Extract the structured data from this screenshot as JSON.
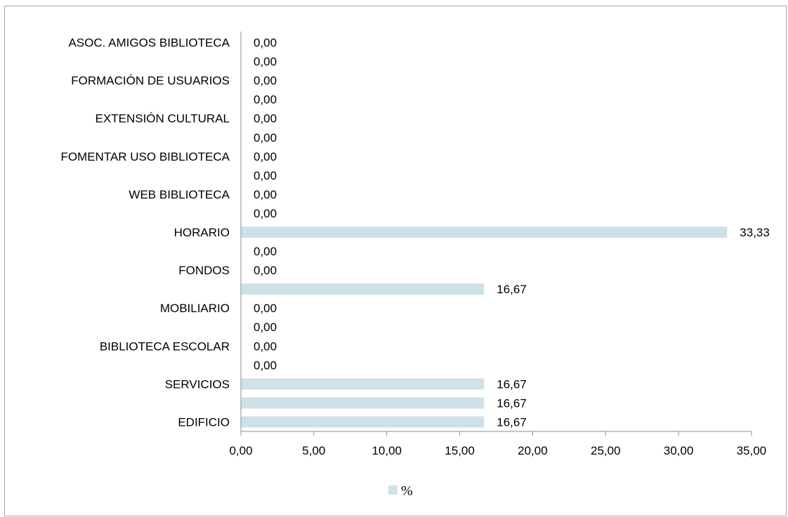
{
  "chart_data": {
    "type": "bar",
    "orientation": "horizontal",
    "title": "",
    "xlabel": "",
    "ylabel": "",
    "xlim": [
      0,
      35
    ],
    "x_ticks": [
      "0,00",
      "5,00",
      "10,00",
      "15,00",
      "20,00",
      "25,00",
      "30,00",
      "35,00"
    ],
    "grid": false,
    "legend_position": "bottom",
    "bar_color": "#cfe1e8",
    "categories": [
      "ASOC. AMIGOS BIBLIOTECA",
      "",
      "FORMACIÓN DE USUARIOS",
      "",
      "EXTENSIÓN CULTURAL",
      "",
      "FOMENTAR USO BIBLIOTECA",
      "",
      "WEB BIBLIOTECA",
      "",
      "HORARIO",
      "",
      "FONDOS",
      "",
      "MOBILIARIO",
      "",
      "BIBLIOTECA ESCOLAR",
      "",
      "SERVICIOS",
      "",
      "EDIFICIO"
    ],
    "series": [
      {
        "name": "%",
        "values": [
          0,
          0,
          0,
          0,
          0,
          0,
          0,
          0,
          0,
          0,
          33.33,
          0,
          0,
          16.67,
          0,
          0,
          0,
          0,
          16.67,
          16.67,
          16.67
        ],
        "value_labels": [
          "0,00",
          "0,00",
          "0,00",
          "0,00",
          "0,00",
          "0,00",
          "0,00",
          "0,00",
          "0,00",
          "0,00",
          "33,33",
          "0,00",
          "0,00",
          "16,67",
          "0,00",
          "0,00",
          "0,00",
          "0,00",
          "16,67",
          "16,67",
          "16,67"
        ]
      }
    ]
  }
}
